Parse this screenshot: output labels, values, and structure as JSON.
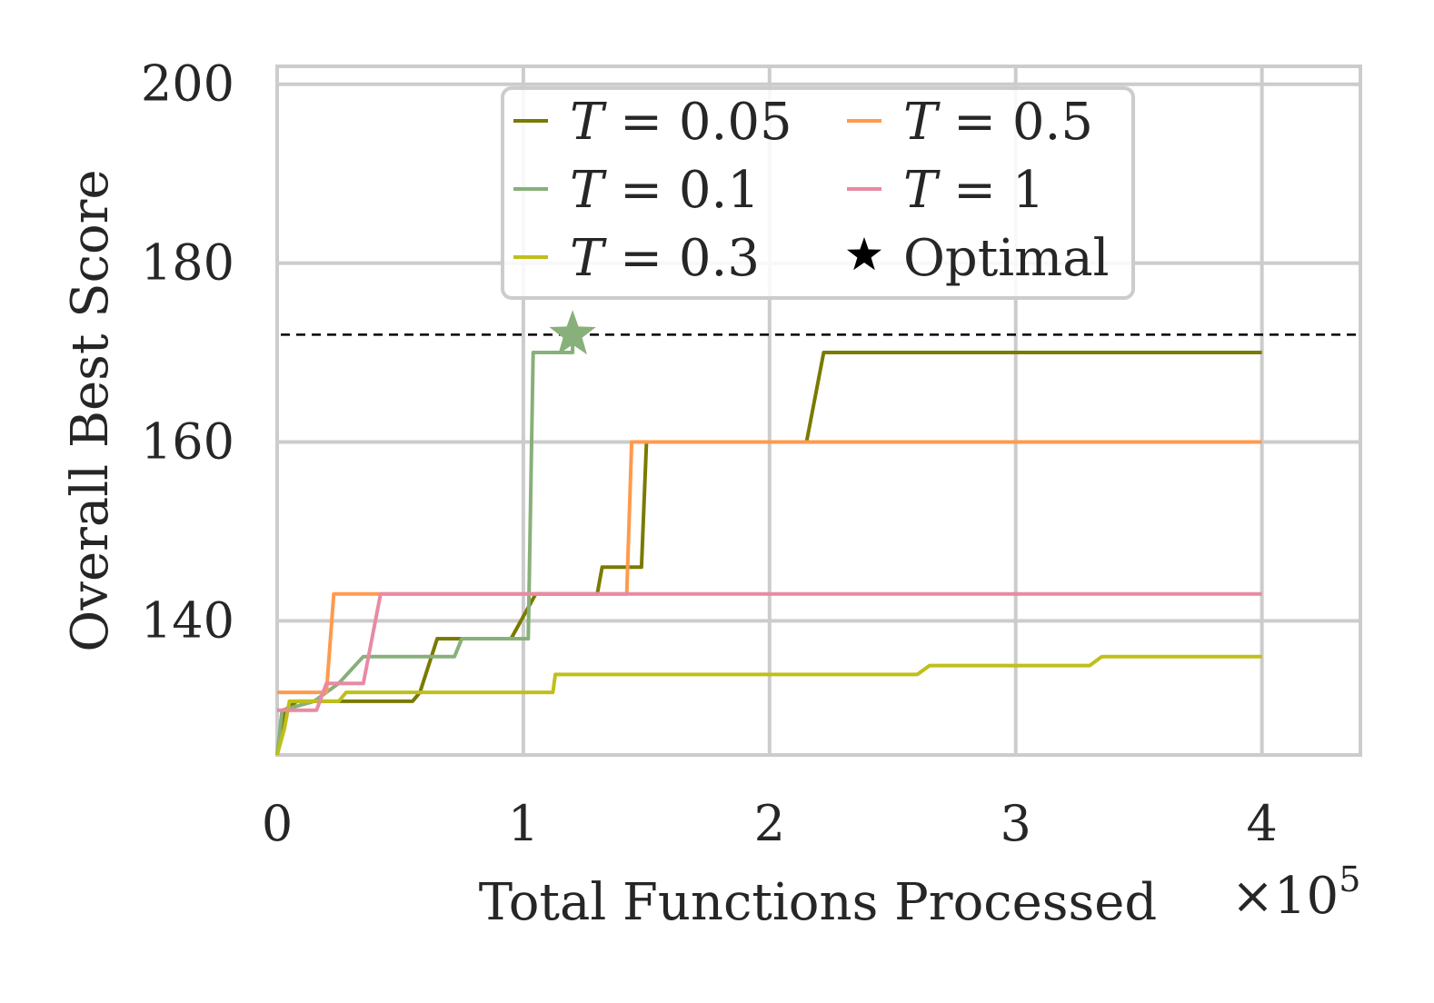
{
  "chart_data": {
    "type": "line",
    "xlabel": "Total Functions Processed",
    "x_multiplier": "×10",
    "x_multiplier_exp": "5",
    "ylabel": "Overall Best Score",
    "xlim": [
      0,
      4.4
    ],
    "ylim": [
      125,
      202
    ],
    "x_ticks": [
      0,
      1,
      2,
      3,
      4
    ],
    "x_tick_labels": [
      "0",
      "1",
      "2",
      "3",
      "4"
    ],
    "y_ticks": [
      140,
      160,
      180,
      200
    ],
    "y_tick_labels": [
      "140",
      "160",
      "180",
      "200"
    ],
    "grid": true,
    "optimal_value": 172,
    "optimal_marker": {
      "x": 1.2,
      "y": 172,
      "color": "#88b07a"
    },
    "legend_position": "upper-center",
    "legend": [
      {
        "label": "T = 0.05",
        "var": "T",
        "rest": " = 0.05",
        "color": "#7a7a00",
        "kind": "line"
      },
      {
        "label": "T = 0.1",
        "var": "T",
        "rest": " = 0.1",
        "color": "#88b07a",
        "kind": "line"
      },
      {
        "label": "T = 0.3",
        "var": "T",
        "rest": " = 0.3",
        "color": "#bfbf1a",
        "kind": "line"
      },
      {
        "label": "T = 0.5",
        "var": "T",
        "rest": " = 0.5",
        "color": "#ff9a4d",
        "kind": "line"
      },
      {
        "label": "T = 1",
        "var": "T",
        "rest": " = 1",
        "color": "#e88aa3",
        "kind": "line"
      },
      {
        "label": "Optimal",
        "var": "",
        "rest": "Optimal",
        "color": "#000000",
        "kind": "star"
      }
    ],
    "series": [
      {
        "name": "T = 0.05",
        "color": "#7a7a00",
        "points": [
          [
            0,
            125
          ],
          [
            0.03,
            130
          ],
          [
            0.08,
            131
          ],
          [
            0.55,
            131
          ],
          [
            0.58,
            132
          ],
          [
            0.65,
            138
          ],
          [
            0.95,
            138
          ],
          [
            1.05,
            143
          ],
          [
            1.3,
            143
          ],
          [
            1.32,
            146
          ],
          [
            1.48,
            146
          ],
          [
            1.5,
            160
          ],
          [
            2.15,
            160
          ],
          [
            2.22,
            170
          ],
          [
            4.0,
            170
          ]
        ]
      },
      {
        "name": "T = 0.1",
        "color": "#88b07a",
        "points": [
          [
            0,
            125
          ],
          [
            0.02,
            130
          ],
          [
            0.15,
            131
          ],
          [
            0.25,
            133
          ],
          [
            0.35,
            136
          ],
          [
            0.72,
            136
          ],
          [
            0.75,
            138
          ],
          [
            1.02,
            138
          ],
          [
            1.04,
            170
          ],
          [
            1.2,
            170
          ],
          [
            1.2,
            172
          ]
        ]
      },
      {
        "name": "T = 0.3",
        "color": "#bfbf1a",
        "points": [
          [
            0,
            125
          ],
          [
            0.03,
            128
          ],
          [
            0.05,
            131
          ],
          [
            0.25,
            131
          ],
          [
            0.28,
            132
          ],
          [
            1.12,
            132
          ],
          [
            1.13,
            134
          ],
          [
            2.6,
            134
          ],
          [
            2.65,
            135
          ],
          [
            3.3,
            135
          ],
          [
            3.35,
            136
          ],
          [
            4.0,
            136
          ]
        ]
      },
      {
        "name": "T = 0.5",
        "color": "#ff9a4d",
        "points": [
          [
            0,
            132
          ],
          [
            0.2,
            132
          ],
          [
            0.23,
            143
          ],
          [
            1.42,
            143
          ],
          [
            1.44,
            160
          ],
          [
            4.0,
            160
          ]
        ]
      },
      {
        "name": "T = 1",
        "color": "#e88aa3",
        "points": [
          [
            0,
            130
          ],
          [
            0.16,
            130
          ],
          [
            0.2,
            133
          ],
          [
            0.35,
            133
          ],
          [
            0.42,
            143
          ],
          [
            4.0,
            143
          ]
        ]
      }
    ]
  }
}
